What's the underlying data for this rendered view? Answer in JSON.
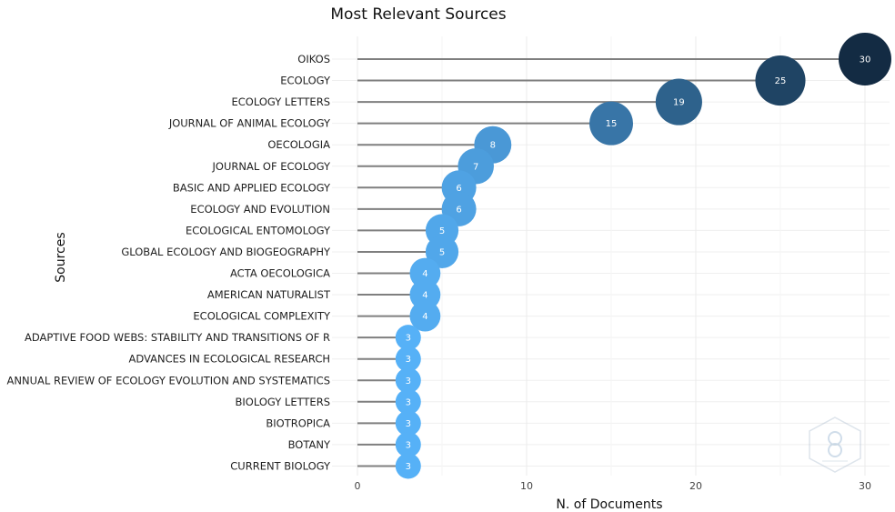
{
  "chart_data": {
    "type": "scatter",
    "subtype": "lollipop",
    "title": "Most Relevant Sources",
    "xlabel": "N. of Documents",
    "ylabel": "Sources",
    "xlim": [
      0,
      31
    ],
    "xticks": [
      0,
      10,
      20,
      30
    ],
    "grid": true,
    "color_scale": {
      "low": "#56B1F7",
      "high": "#132B43"
    },
    "categories": [
      "OIKOS",
      "ECOLOGY",
      "ECOLOGY LETTERS",
      "JOURNAL OF ANIMAL ECOLOGY",
      "OECOLOGIA",
      "JOURNAL OF ECOLOGY",
      "BASIC AND APPLIED ECOLOGY",
      "ECOLOGY AND EVOLUTION",
      "ECOLOGICAL ENTOMOLOGY",
      "GLOBAL ECOLOGY AND BIOGEOGRAPHY",
      "ACTA OECOLOGICA",
      "AMERICAN NATURALIST",
      "ECOLOGICAL COMPLEXITY",
      "ADAPTIVE FOOD WEBS: STABILITY AND TRANSITIONS OF R",
      "ADVANCES IN ECOLOGICAL RESEARCH",
      "ANNUAL REVIEW OF ECOLOGY EVOLUTION AND SYSTEMATICS",
      "BIOLOGY LETTERS",
      "BIOTROPICA",
      "BOTANY",
      "CURRENT BIOLOGY"
    ],
    "values": [
      30,
      25,
      19,
      15,
      8,
      7,
      6,
      6,
      5,
      5,
      4,
      4,
      4,
      3,
      3,
      3,
      3,
      3,
      3,
      3
    ]
  },
  "watermark": {
    "icon": "bibliometrix-logo-icon"
  }
}
